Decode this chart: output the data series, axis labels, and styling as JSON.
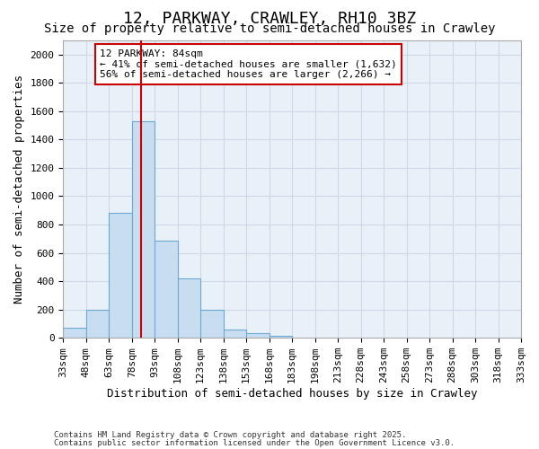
{
  "title1": "12, PARKWAY, CRAWLEY, RH10 3BZ",
  "title2": "Size of property relative to semi-detached houses in Crawley",
  "xlabel": "Distribution of semi-detached houses by size in Crawley",
  "ylabel": "Number of semi-detached properties",
  "property_size": 84,
  "property_label": "12 PARKWAY: 84sqm",
  "annotation_line1": "← 41% of semi-detached houses are smaller (1,632)",
  "annotation_line2": "56% of semi-detached houses are larger (2,266) →",
  "footnote1": "Contains HM Land Registry data © Crown copyright and database right 2025.",
  "footnote2": "Contains public sector information licensed under the Open Government Licence v3.0.",
  "bar_color": "#c8ddf0",
  "bar_edge_color": "#6aaad4",
  "vline_color": "#cc0000",
  "annotation_box_edge_color": "#cc0000",
  "grid_color": "#d0d8e8",
  "plot_bg_color": "#e8f0f8",
  "fig_bg_color": "#ffffff",
  "bin_edges": [
    33,
    48,
    63,
    78,
    93,
    108,
    123,
    138,
    153,
    168,
    183,
    198,
    213,
    228,
    243,
    258,
    273,
    288,
    303,
    318,
    333
  ],
  "bin_labels": [
    "33sqm",
    "48sqm",
    "63sqm",
    "78sqm",
    "93sqm",
    "108sqm",
    "123sqm",
    "138sqm",
    "153sqm",
    "168sqm",
    "183sqm",
    "198sqm",
    "213sqm",
    "228sqm",
    "243sqm",
    "258sqm",
    "273sqm",
    "288sqm",
    "303sqm",
    "318sqm",
    "333sqm"
  ],
  "counts": [
    70,
    195,
    880,
    1530,
    685,
    420,
    195,
    60,
    30,
    15,
    0,
    0,
    0,
    0,
    0,
    0,
    0,
    0,
    0,
    0
  ],
  "ylim": [
    0,
    2100
  ],
  "yticks": [
    0,
    200,
    400,
    600,
    800,
    1000,
    1200,
    1400,
    1600,
    1800,
    2000
  ],
  "title1_fontsize": 13,
  "title2_fontsize": 10,
  "axis_label_fontsize": 9,
  "tick_fontsize": 8,
  "annotation_fontsize": 8,
  "footnote_fontsize": 6.5
}
